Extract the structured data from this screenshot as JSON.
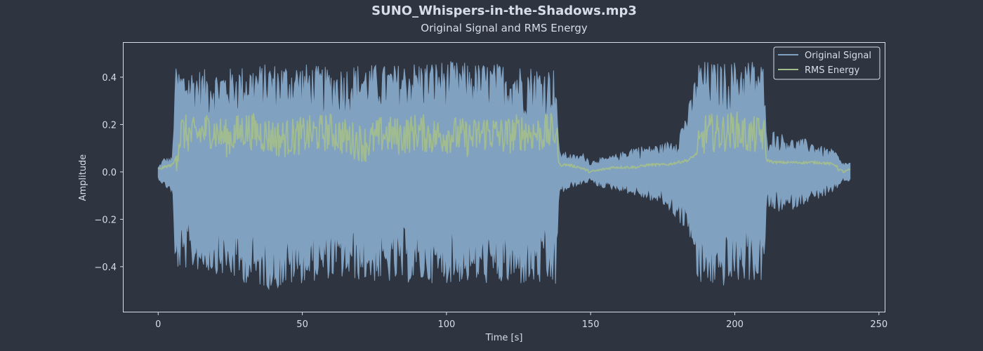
{
  "colors": {
    "background": "#2e3440",
    "text": "#d8dee9",
    "axes": "#d8dee9",
    "signal": "#81a1c1",
    "rms": "#a3be8c"
  },
  "chart_data": {
    "type": "line",
    "title": "SUNO_Whispers-in-the-Shadows.mp3",
    "subtitle": "Original Signal and RMS Energy",
    "xlabel": "Time [s]",
    "ylabel": "Amplitude",
    "xlim": [
      -12,
      252
    ],
    "ylim": [
      -0.59,
      0.545
    ],
    "xticks": [
      0,
      50,
      100,
      150,
      200,
      250
    ],
    "xtick_labels": [
      "0",
      "50",
      "100",
      "150",
      "200",
      "250"
    ],
    "yticks": [
      -0.4,
      -0.2,
      0.0,
      0.2,
      0.4
    ],
    "ytick_labels": [
      "−0.4",
      "−0.2",
      "0.0",
      "0.2",
      "0.4"
    ],
    "grid": false,
    "legend_position": "top-right",
    "series": [
      {
        "name": "Original Signal",
        "kind": "waveform-envelope",
        "x": [
          0,
          2,
          5,
          5.8,
          10,
          20,
          30,
          40,
          50,
          60,
          70,
          80,
          90,
          100,
          110,
          120,
          130,
          138,
          139,
          140,
          145,
          148,
          150,
          152,
          155,
          160,
          165,
          170,
          175,
          180,
          185,
          187,
          190,
          195,
          200,
          205,
          210,
          211,
          212,
          215,
          220,
          225,
          230,
          235,
          237,
          240
        ],
        "upper": [
          0.02,
          0.06,
          0.06,
          0.44,
          0.44,
          0.43,
          0.45,
          0.46,
          0.46,
          0.44,
          0.46,
          0.45,
          0.47,
          0.47,
          0.46,
          0.46,
          0.45,
          0.44,
          0.09,
          0.09,
          0.07,
          0.08,
          0.04,
          0.06,
          0.06,
          0.08,
          0.11,
          0.11,
          0.12,
          0.15,
          0.32,
          0.47,
          0.47,
          0.46,
          0.47,
          0.48,
          0.46,
          0.13,
          0.18,
          0.17,
          0.14,
          0.14,
          0.11,
          0.09,
          0.04,
          0.04
        ],
        "lower": [
          -0.03,
          -0.06,
          -0.09,
          -0.42,
          -0.41,
          -0.43,
          -0.47,
          -0.5,
          -0.47,
          -0.45,
          -0.46,
          -0.47,
          -0.47,
          -0.47,
          -0.47,
          -0.48,
          -0.48,
          -0.49,
          -0.11,
          -0.09,
          -0.06,
          -0.05,
          -0.04,
          -0.06,
          -0.07,
          -0.08,
          -0.1,
          -0.12,
          -0.14,
          -0.2,
          -0.29,
          -0.49,
          -0.48,
          -0.49,
          -0.47,
          -0.46,
          -0.47,
          -0.15,
          -0.16,
          -0.17,
          -0.16,
          -0.13,
          -0.11,
          -0.09,
          -0.04,
          -0.04
        ]
      },
      {
        "name": "RMS Energy",
        "kind": "line",
        "x": [
          0,
          2,
          5,
          5.8,
          8,
          12,
          18,
          24,
          30,
          36,
          42,
          48,
          54,
          60,
          66,
          72,
          78,
          84,
          90,
          96,
          102,
          108,
          114,
          120,
          126,
          132,
          138,
          139,
          142,
          146,
          150,
          154,
          158,
          162,
          166,
          170,
          176,
          180,
          184,
          187,
          190,
          195,
          200,
          205,
          210,
          211,
          214,
          218,
          222,
          226,
          230,
          235,
          236,
          238,
          240
        ],
        "y": [
          0.01,
          0.02,
          0.03,
          0.05,
          0.17,
          0.15,
          0.18,
          0.14,
          0.18,
          0.16,
          0.14,
          0.15,
          0.16,
          0.17,
          0.14,
          0.12,
          0.16,
          0.15,
          0.17,
          0.15,
          0.16,
          0.14,
          0.17,
          0.15,
          0.17,
          0.16,
          0.17,
          0.03,
          0.03,
          0.02,
          0.0,
          0.01,
          0.02,
          0.02,
          0.02,
          0.03,
          0.03,
          0.04,
          0.05,
          0.08,
          0.17,
          0.16,
          0.18,
          0.15,
          0.16,
          0.05,
          0.04,
          0.04,
          0.04,
          0.04,
          0.04,
          0.03,
          0.01,
          0.0,
          0.01
        ]
      }
    ]
  }
}
